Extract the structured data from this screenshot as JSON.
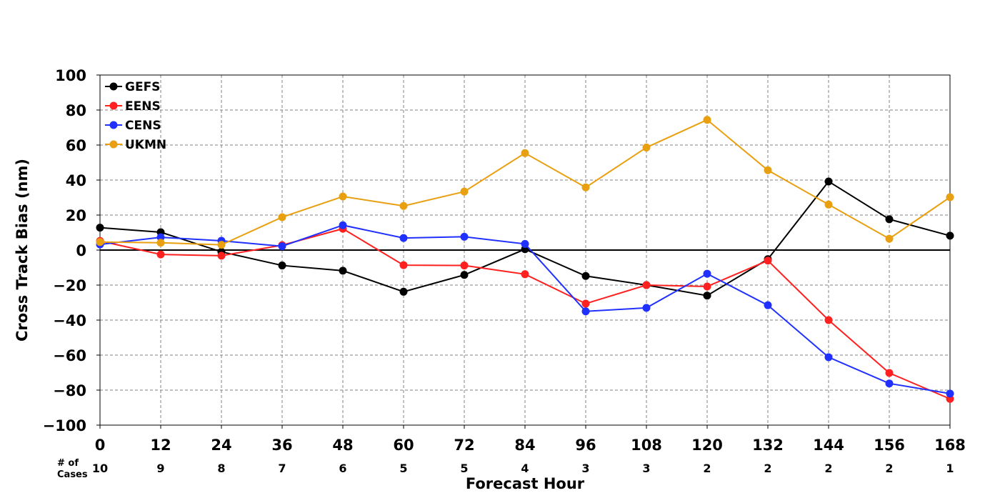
{
  "chart_data": {
    "type": "line",
    "title": "",
    "xlabel": "Forecast Hour",
    "ylabel": "Cross Track Bias (nm)",
    "x": [
      0,
      12,
      24,
      36,
      48,
      60,
      72,
      84,
      96,
      108,
      120,
      132,
      144,
      156,
      168
    ],
    "xlim": [
      0,
      168
    ],
    "ylim": [
      -100,
      100
    ],
    "x_ticks": [
      0,
      12,
      24,
      36,
      48,
      60,
      72,
      84,
      96,
      108,
      120,
      132,
      144,
      156,
      168
    ],
    "y_ticks": [
      -100,
      -80,
      -60,
      -40,
      -20,
      0,
      20,
      40,
      60,
      80,
      100
    ],
    "grid": true,
    "zero_line": true,
    "legend_position": "top-left",
    "cases_label": "# of Cases",
    "cases": [
      10,
      9,
      8,
      7,
      6,
      5,
      5,
      4,
      3,
      3,
      2,
      2,
      2,
      2,
      1
    ],
    "series": [
      {
        "name": "GEFS",
        "color": "#000000",
        "values": [
          12.8,
          10.2,
          -1.0,
          -8.8,
          -11.8,
          -23.8,
          -14.2,
          0.5,
          -14.8,
          -20.0,
          -26.0,
          -5.2,
          39.2,
          17.6,
          8.2
        ]
      },
      {
        "name": "EENS",
        "color": "#ff2020",
        "values": [
          5.2,
          -2.5,
          -3.2,
          2.8,
          12.2,
          -8.6,
          -8.8,
          -13.8,
          -30.6,
          -20.0,
          -20.8,
          -6.0,
          -40.0,
          -70.2,
          -85.0
        ]
      },
      {
        "name": "CENS",
        "color": "#2030ff",
        "values": [
          3.2,
          7.3,
          5.3,
          2.2,
          14.2,
          6.9,
          7.6,
          3.5,
          -35.0,
          -33.0,
          -13.5,
          -31.5,
          -61.2,
          -76.2,
          -82.0
        ]
      },
      {
        "name": "UKMN",
        "color": "#e8a010",
        "values": [
          4.6,
          4.2,
          3.0,
          18.8,
          30.6,
          25.2,
          33.4,
          55.4,
          35.8,
          58.6,
          74.4,
          45.6,
          26.0,
          6.5,
          30.2
        ]
      }
    ]
  }
}
